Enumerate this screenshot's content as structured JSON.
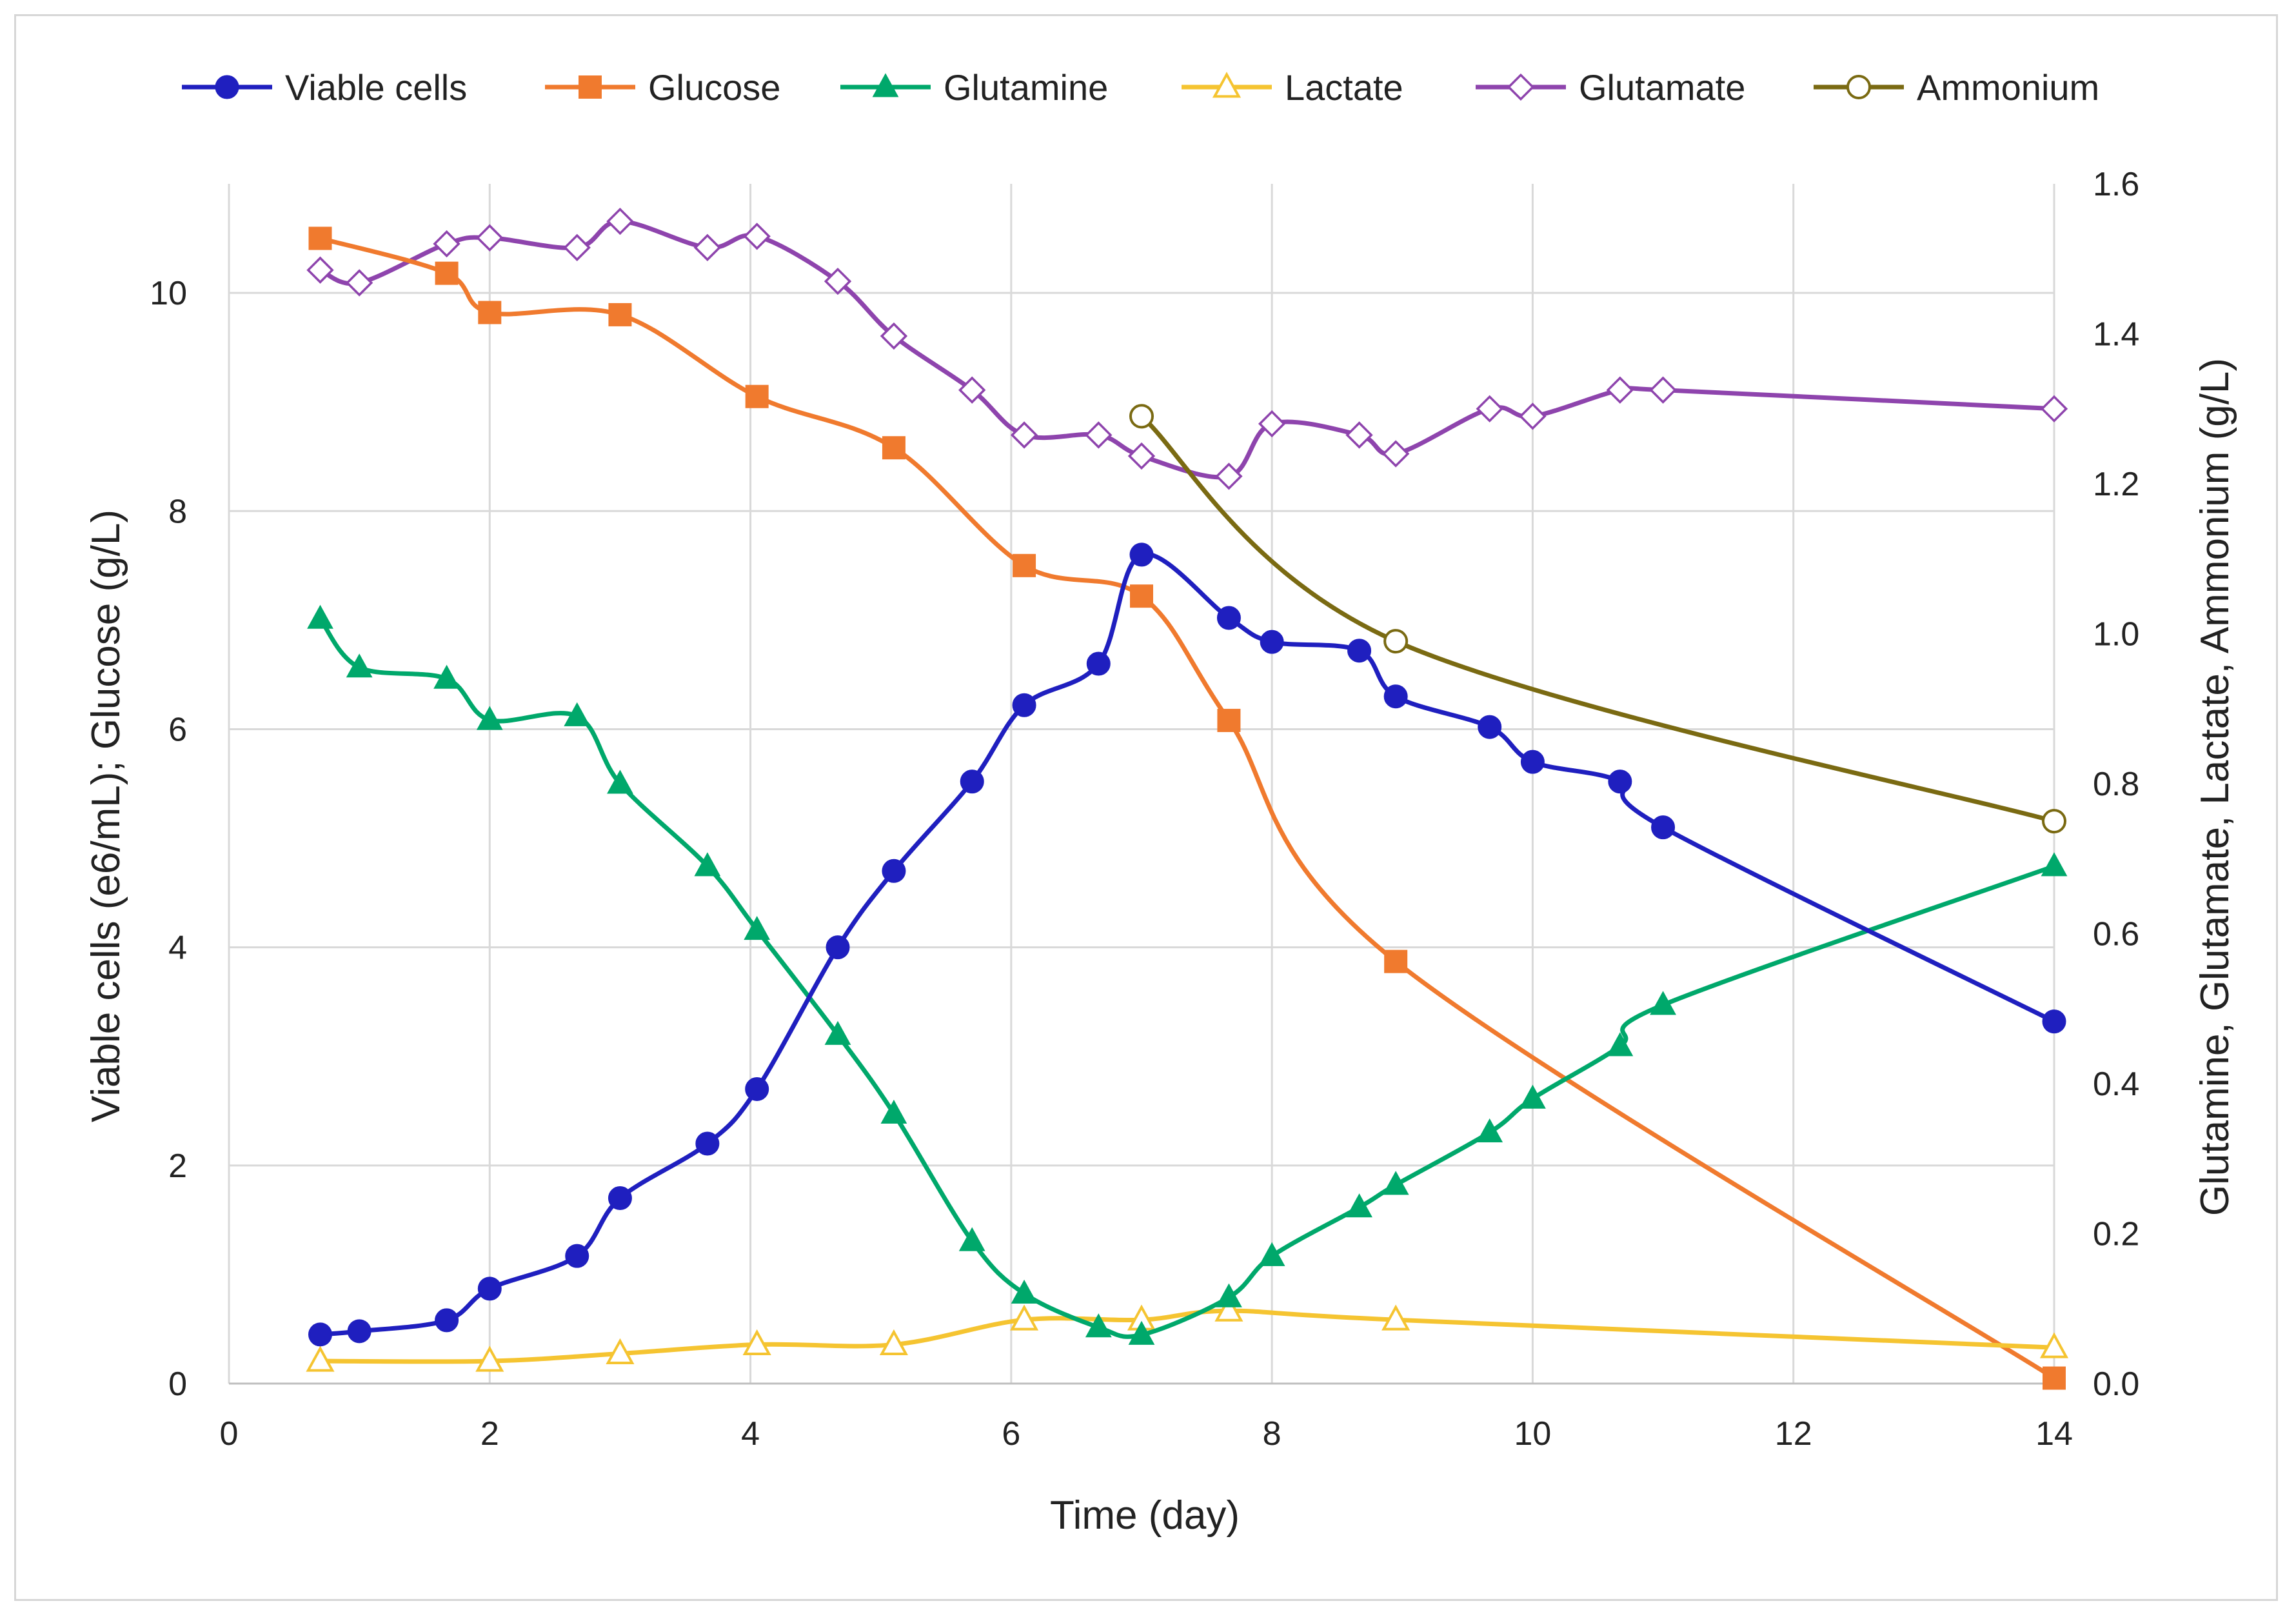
{
  "chart_data": {
    "type": "line",
    "title": "",
    "xlabel": "Time (day)",
    "ylabel_left": "Viable cells (e6/mL); Glucose (g/L)",
    "ylabel_right": "Glutamine, Glutamate, Lactate, Ammonium (g/L)",
    "xlim": [
      0,
      14
    ],
    "ylim_left": [
      0,
      11
    ],
    "ylim_right": [
      0,
      1.6
    ],
    "x_ticks": [
      "0",
      "2",
      "4",
      "6",
      "8",
      "10",
      "12",
      "14"
    ],
    "y_ticks_left": [
      "0",
      "2",
      "4",
      "6",
      "8",
      "10"
    ],
    "y_ticks_right": [
      "0.0",
      "0.2",
      "0.4",
      "0.6",
      "0.8",
      "1.0",
      "1.2",
      "1.4",
      "1.6"
    ],
    "grid": true,
    "legend_position": "top",
    "series": [
      {
        "name": "Viable cells",
        "axis": "left",
        "color": "#1f1fbf",
        "marker": "circle-filled",
        "x": [
          0.7,
          1.0,
          1.67,
          2.0,
          2.67,
          3.0,
          3.67,
          4.05,
          4.67,
          5.1,
          5.7,
          6.1,
          6.67,
          7.0,
          7.67,
          8.0,
          8.67,
          8.95,
          9.67,
          10.0,
          10.67,
          11.0,
          14.0
        ],
        "values": [
          0.45,
          0.48,
          0.58,
          0.87,
          1.17,
          1.7,
          2.2,
          2.7,
          4.0,
          4.7,
          5.52,
          6.22,
          6.6,
          7.6,
          7.02,
          6.8,
          6.72,
          6.3,
          6.02,
          5.7,
          5.52,
          5.1,
          3.32
        ]
      },
      {
        "name": "Glucose",
        "axis": "left",
        "color": "#f07a2e",
        "marker": "square-filled",
        "x": [
          0.7,
          1.67,
          2.0,
          3.0,
          4.05,
          5.1,
          6.1,
          7.0,
          7.67,
          8.95,
          14.0
        ],
        "values": [
          10.5,
          10.18,
          9.82,
          9.8,
          9.05,
          8.58,
          7.5,
          7.22,
          6.08,
          3.87,
          0.05
        ]
      },
      {
        "name": "Glutamine",
        "axis": "right",
        "color": "#00a86b",
        "marker": "triangle-filled",
        "x": [
          0.7,
          1.0,
          1.67,
          2.0,
          2.67,
          3.0,
          3.67,
          4.05,
          4.67,
          5.1,
          5.7,
          6.1,
          6.67,
          7.0,
          7.67,
          8.0,
          8.67,
          8.95,
          9.67,
          10.0,
          10.67,
          11.0,
          14.0
        ],
        "values": [
          1.02,
          0.955,
          0.94,
          0.885,
          0.89,
          0.8,
          0.69,
          0.605,
          0.465,
          0.36,
          0.19,
          0.12,
          0.075,
          0.065,
          0.115,
          0.17,
          0.235,
          0.265,
          0.335,
          0.38,
          0.45,
          0.505,
          0.69
        ]
      },
      {
        "name": "Lactate",
        "axis": "right",
        "color": "#f5c431",
        "marker": "triangle-open",
        "x": [
          0.7,
          2.0,
          3.0,
          4.05,
          5.1,
          6.1,
          7.0,
          7.67,
          8.95,
          14.0
        ],
        "values": [
          0.03,
          0.03,
          0.04,
          0.052,
          0.052,
          0.085,
          0.085,
          0.097,
          0.085,
          0.048
        ]
      },
      {
        "name": "Glutamate",
        "axis": "right",
        "color": "#8e44ad",
        "marker": "diamond-open",
        "x": [
          0.7,
          1.0,
          1.67,
          2.0,
          2.67,
          3.0,
          3.67,
          4.05,
          4.67,
          5.1,
          5.7,
          6.1,
          6.67,
          7.0,
          7.67,
          8.0,
          8.67,
          8.95,
          9.67,
          10.0,
          10.67,
          11.0,
          14.0
        ],
        "values": [
          1.485,
          1.468,
          1.52,
          1.528,
          1.515,
          1.55,
          1.515,
          1.53,
          1.47,
          1.397,
          1.325,
          1.265,
          1.265,
          1.237,
          1.21,
          1.28,
          1.265,
          1.24,
          1.3,
          1.29,
          1.325,
          1.325,
          1.3
        ]
      },
      {
        "name": "Ammonium",
        "axis": "right",
        "color": "#7a6a12",
        "marker": "circle-open",
        "x": [
          7.0,
          8.95,
          14.0
        ],
        "values": [
          1.29,
          0.99,
          0.75
        ]
      }
    ]
  }
}
